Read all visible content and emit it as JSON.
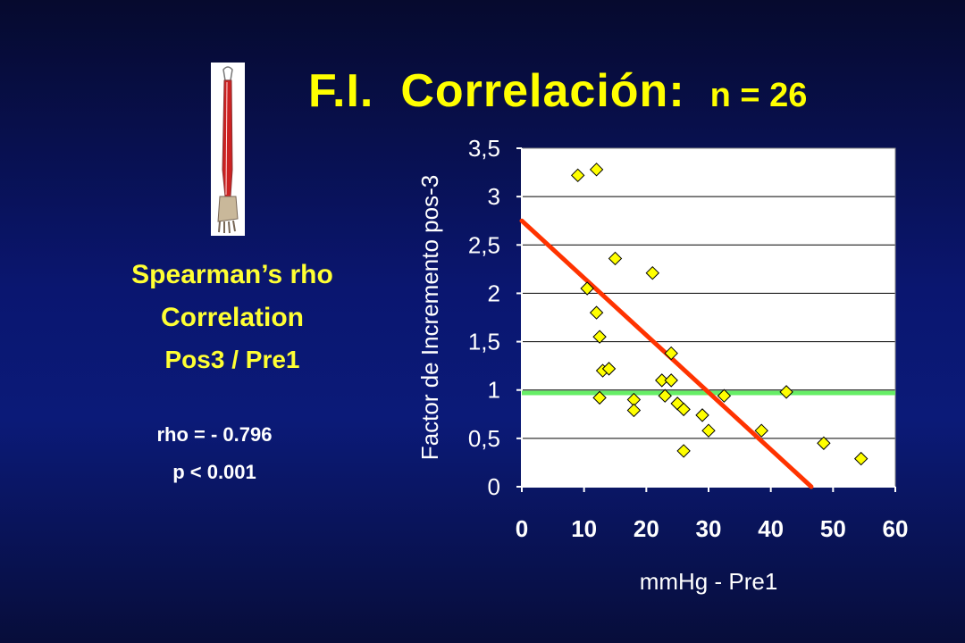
{
  "title": {
    "fi": "F.I.",
    "main": "Correlación:",
    "n": "n = 26"
  },
  "left_panel": {
    "line1": "Spearman’s rho",
    "line2": "Correlation",
    "line3": "Pos3 / Pre1",
    "rho": "rho = - 0.796",
    "p": "p < 0.001"
  },
  "chart_data": {
    "type": "scatter",
    "xlabel": "mmHg - Pre1",
    "ylabel": "Factor de Incremento pos-3",
    "xlim": [
      0,
      60
    ],
    "ylim": [
      0,
      3.5
    ],
    "x_ticks": [
      "0",
      "10",
      "20",
      "30",
      "40",
      "50",
      "60"
    ],
    "y_ticks": [
      "0",
      "0,5",
      "1",
      "1,5",
      "2",
      "2,5",
      "3",
      "3,5"
    ],
    "grid": true,
    "points_color": "#ffff00",
    "series": [
      {
        "points": [
          [
            9,
            3.22
          ],
          [
            12,
            3.28
          ],
          [
            10.5,
            2.05
          ],
          [
            15,
            2.36
          ],
          [
            21,
            2.21
          ],
          [
            12,
            1.8
          ],
          [
            12.5,
            1.55
          ],
          [
            13,
            1.2
          ],
          [
            14,
            1.22
          ],
          [
            24,
            1.38
          ],
          [
            12.5,
            0.92
          ],
          [
            18,
            0.9
          ],
          [
            18,
            0.79
          ],
          [
            22.5,
            1.1
          ],
          [
            24,
            1.1
          ],
          [
            23,
            0.94
          ],
          [
            25,
            0.86
          ],
          [
            26,
            0.8
          ],
          [
            29,
            0.74
          ],
          [
            32.5,
            0.94
          ],
          [
            30,
            0.58
          ],
          [
            26,
            0.37
          ],
          [
            38.5,
            0.58
          ],
          [
            42.5,
            0.98
          ],
          [
            48.5,
            0.45
          ],
          [
            54.5,
            0.29
          ]
        ]
      }
    ],
    "reference_line": {
      "y": 0.97,
      "color": "#66ee66"
    },
    "fit_line": {
      "from": [
        0,
        2.75
      ],
      "to": [
        46.5,
        0
      ],
      "color": "#ff3300"
    },
    "plot_background": "#ffffff"
  }
}
